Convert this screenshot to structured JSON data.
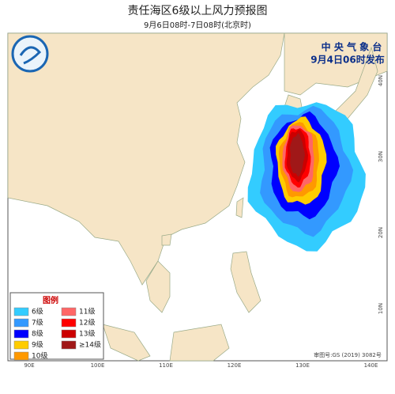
{
  "header": {
    "title": "责任海区6级以上风力预报图",
    "subtitle": "9月6日08时-7日08时(北京时)"
  },
  "issuer": {
    "name": "中 央 气 象 台",
    "time": "9月4日06时发布"
  },
  "legend": {
    "title": "图例",
    "items": [
      {
        "label": "6级",
        "color": "#33ccff"
      },
      {
        "label": "7级",
        "color": "#3399ff"
      },
      {
        "label": "8级",
        "color": "#0000ff"
      },
      {
        "label": "9级",
        "color": "#ffcc00"
      },
      {
        "label": "10级",
        "color": "#ff9900"
      },
      {
        "label": "11级",
        "color": "#ff6666"
      },
      {
        "label": "12级",
        "color": "#ff0000"
      },
      {
        "label": "13级",
        "color": "#cc0000"
      },
      {
        "label": "≥14级",
        "color": "#a01818"
      }
    ]
  },
  "axes": {
    "longitude": [
      "90E",
      "100E",
      "110E",
      "120E",
      "130E",
      "140E"
    ],
    "latitude": [
      "40N",
      "30N",
      "20N",
      "10N"
    ]
  },
  "footer": {
    "approval": "审图号:GS (2019) 3082号"
  }
}
